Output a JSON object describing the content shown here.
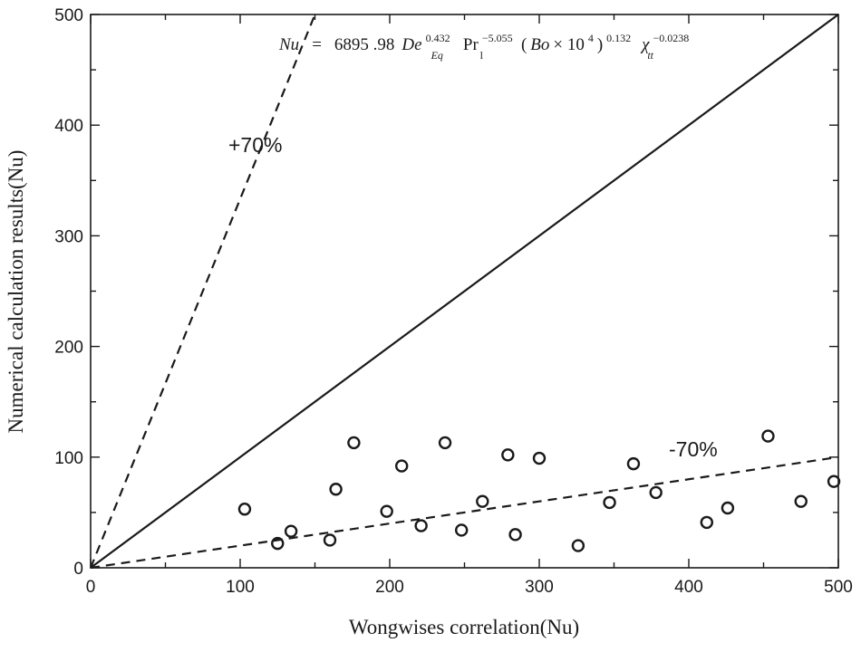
{
  "chart_data": {
    "type": "scatter",
    "title": "",
    "xlabel": "Wongwises correlation(Nu)",
    "ylabel": "Numerical calculation results(Nu)",
    "xlim": [
      0,
      500
    ],
    "ylim": [
      0,
      500
    ],
    "x_ticks": [
      0,
      100,
      200,
      300,
      400,
      500
    ],
    "y_ticks": [
      0,
      100,
      200,
      300,
      400,
      500
    ],
    "grid": false,
    "series": [
      {
        "name": "data points",
        "marker": "open-circle",
        "x": [
          103,
          125,
          134,
          160,
          164,
          176,
          198,
          208,
          221,
          237,
          248,
          262,
          279,
          284,
          300,
          326,
          347,
          363,
          378,
          412,
          426,
          453,
          475,
          497
        ],
        "y": [
          53,
          22,
          33,
          25,
          71,
          113,
          51,
          92,
          38,
          113,
          34,
          60,
          102,
          30,
          99,
          20,
          59,
          94,
          68,
          41,
          54,
          119,
          60,
          78
        ]
      }
    ],
    "reference_lines": [
      {
        "name": "y=x",
        "style": "solid",
        "slope": 1.0
      },
      {
        "name": "+70%",
        "style": "dashed",
        "slope": 3.333
      },
      {
        "name": "-70%",
        "style": "dashed",
        "slope": 0.2
      }
    ],
    "annotations": {
      "plus70": "+70%",
      "minus70": "-70%"
    },
    "equation": {
      "lhs": "Nu",
      "equals": "=",
      "coef": "6895 .98",
      "t1_base": "De",
      "t1_sub": "Eq",
      "t1_exp": "0.432",
      "t2_base": "Pr",
      "t2_sub": "l",
      "t2_exp": "−5.055",
      "t3_open": "(",
      "t3_bo": "Bo",
      "t3_times": " × 10",
      "t3_pow": "4",
      "t3_close": ")",
      "t3_exp": "0.132",
      "t4_base": "χ",
      "t4_sub": "tt",
      "t4_exp": "−0.0238"
    }
  },
  "colors": {
    "axis": "#1a1a1a",
    "line": "#1a1a1a",
    "marker": "#1a1a1a",
    "background": "#ffffff"
  }
}
